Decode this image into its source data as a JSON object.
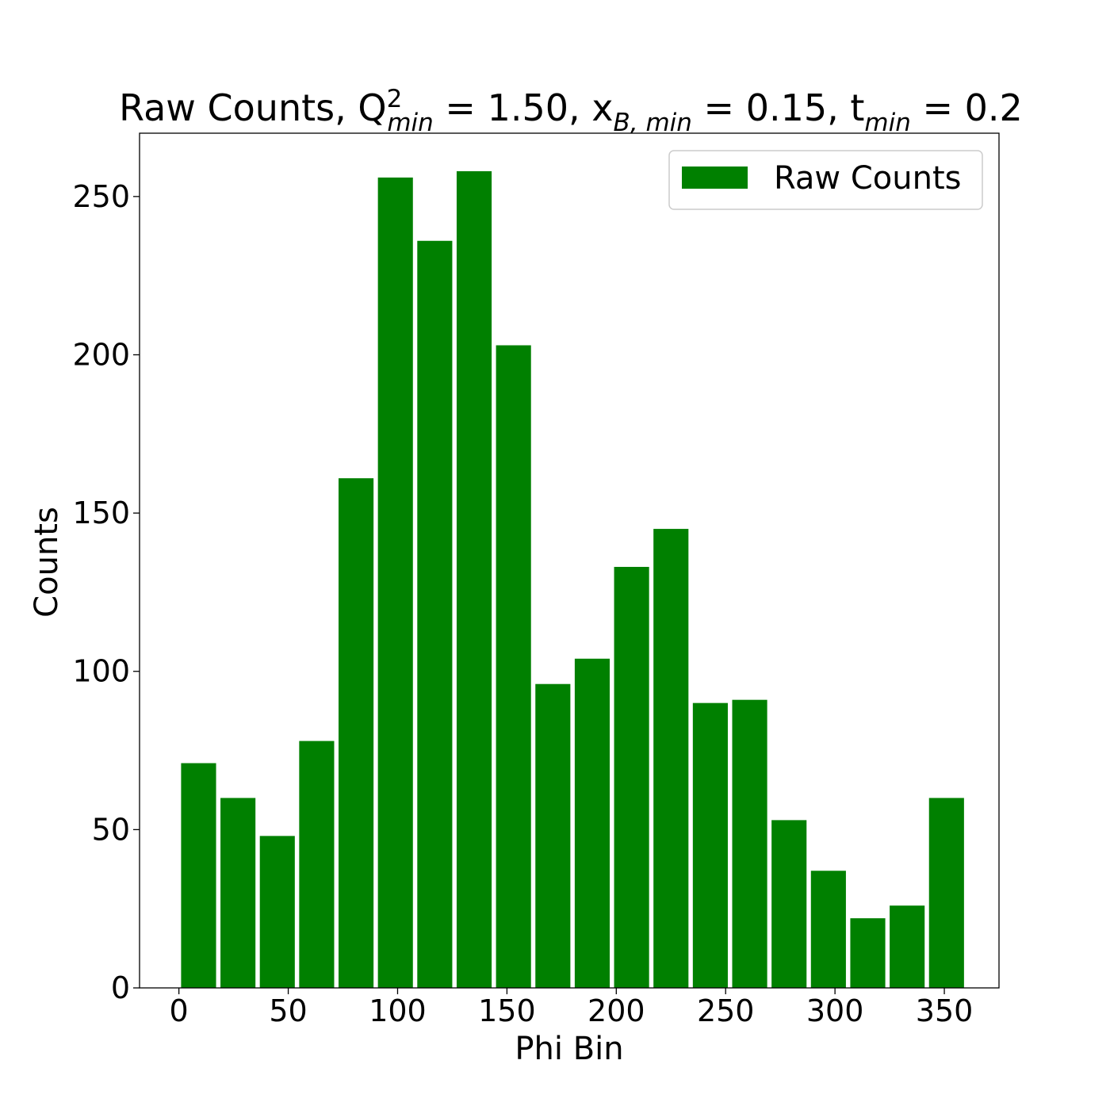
{
  "chart_data": {
    "type": "bar",
    "title": {
      "prefix": "Raw Counts, Q",
      "q_sup": "2",
      "q_sub": "min",
      "q_value": " = 1.50, x",
      "x_sub": "B, min",
      "x_value": " = 0.15, t",
      "t_sub": "min",
      "t_value": " = 0.2"
    },
    "xlabel": "Phi Bin",
    "ylabel": "Counts",
    "xlim": [
      -18,
      375
    ],
    "ylim": [
      0,
      270
    ],
    "xticks": [
      0,
      50,
      100,
      150,
      200,
      250,
      300,
      350
    ],
    "yticks": [
      0,
      50,
      100,
      150,
      200,
      250
    ],
    "bar_width": 16,
    "bar_color": "#008000",
    "legend": {
      "label": "Raw Counts",
      "position": "top-right"
    },
    "x": [
      9,
      27,
      45,
      63,
      81,
      99,
      117,
      135,
      153,
      171,
      189,
      207,
      225,
      243,
      261,
      279,
      297,
      315,
      333,
      351
    ],
    "values": [
      71,
      60,
      48,
      78,
      161,
      256,
      236,
      258,
      203,
      96,
      104,
      133,
      145,
      90,
      91,
      53,
      37,
      22,
      26,
      60
    ]
  }
}
